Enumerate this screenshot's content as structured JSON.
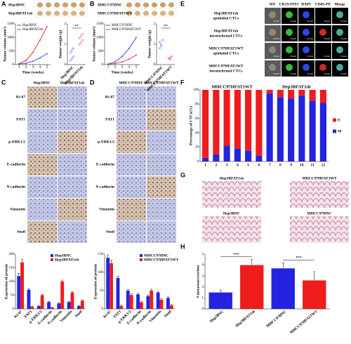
{
  "figure": {
    "panel_labels": [
      "A",
      "B",
      "C",
      "D",
      "E",
      "F",
      "G",
      "H"
    ],
    "a": {
      "photo_labels": [
        "Hep3BNC",
        "Hep3BFAT1sh"
      ]
    },
    "b": {
      "photo_labels": [
        "MHCC97HNC",
        "MHCC97HFAT1WT"
      ]
    },
    "c": {
      "columns": [
        "Hep3BNC",
        "Hep3BFAT1sh"
      ],
      "rows": [
        "Ki-67",
        "FAT1",
        "p-ERK1/2",
        "E-cadherin",
        "N-cadherin",
        "Vimentin",
        "Snail"
      ]
    },
    "d": {
      "columns": [
        "MHCC97HNC",
        "MHCC97HFAT1WT"
      ],
      "rows": [
        "Ki-67",
        "FAT1",
        "p-ERK1/2",
        "E-cadherin",
        "N-cadherin",
        "Vimentin",
        "Snail"
      ]
    },
    "e": {
      "columns": [
        "WF",
        "CK19-FITC",
        "DAPI",
        "CD45-PE",
        "Merge"
      ],
      "rows": [
        [
          "Hep3BFAT1sh",
          "epithelial CTCs"
        ],
        [
          "Hep3BFAT1sh",
          "mesenchymal CTCs"
        ],
        [
          "MHCC97HFAT1WT",
          "epithelial CTCs"
        ],
        [
          "MHCC97HFAT1WT",
          "mesenchymal CTCs"
        ]
      ],
      "scale": "10 μm"
    },
    "g": {
      "labels": [
        "Hep3BFAT1sh",
        "MHCC97HFAT1WT",
        "Hep3BNC",
        "MHCC97HNC"
      ]
    }
  },
  "chart_data": [
    {
      "type": "line",
      "xlabel": "Time (weeks)",
      "ylabel": "Tumor volume (mm³)",
      "x": [
        1,
        2,
        3,
        4,
        5
      ],
      "xlim": [
        0.5,
        5.5
      ],
      "xticks": [
        1,
        2,
        3,
        4,
        5
      ],
      "ylim": [
        0,
        1500
      ],
      "yticks": [
        0,
        500,
        1000,
        1500
      ],
      "legend": "upper-left",
      "series": [
        {
          "name": "Hep3BNC",
          "color": "#2f3fd8",
          "values": [
            20,
            50,
            120,
            250,
            400
          ]
        },
        {
          "name": "Hep3BFAT1sh",
          "color": "#e8231f",
          "values": [
            30,
            150,
            450,
            900,
            1400
          ]
        }
      ]
    },
    {
      "type": "strip",
      "ylabel": "Tumor weight (g)",
      "categories": [
        "Hep3BNC",
        "Hep3BFAT1sh"
      ],
      "colors": [
        "#2f3fd8",
        "#e8231f"
      ],
      "values": [
        [
          0.2,
          0.3,
          0.4,
          0.6,
          0.7,
          0.8
        ],
        [
          1.0,
          1.1,
          1.2,
          1.3,
          1.4,
          1.5
        ]
      ],
      "ylim": [
        0,
        2
      ],
      "yticks": [
        0,
        1,
        2
      ],
      "annotation": "**"
    },
    {
      "type": "line",
      "xlabel": "Time (weeks)",
      "ylabel": "Tumor volume (mm³)",
      "x": [
        1,
        2,
        3,
        4,
        5
      ],
      "xlim": [
        0.5,
        5.5
      ],
      "xticks": [
        1,
        2,
        3,
        4,
        5
      ],
      "ylim": [
        0,
        1500
      ],
      "yticks": [
        0,
        500,
        1000,
        1500
      ],
      "legend": "upper-left",
      "series": [
        {
          "name": "MHCC97HNC",
          "color": "#2f3fd8",
          "values": [
            20,
            100,
            300,
            600,
            1000
          ]
        },
        {
          "name": "MHCC97HFAT1WT",
          "color": "#e8231f",
          "values": [
            10,
            40,
            100,
            200,
            350
          ]
        }
      ]
    },
    {
      "type": "strip",
      "ylabel": "Tumor weight (g)",
      "categories": [
        "MHCC97HNC",
        "MHCC97HFAT1WT"
      ],
      "colors": [
        "#2f3fd8",
        "#e8231f"
      ],
      "values": [
        [
          0.8,
          1.0,
          1.2,
          1.1,
          0.9
        ],
        [
          0.3,
          0.35,
          0.4,
          0.3,
          0.25
        ]
      ],
      "ylim": [
        0,
        2
      ],
      "yticks": [
        0,
        1,
        2
      ],
      "annotation": "**"
    },
    {
      "type": "bar",
      "ylabel": "Expression of protein",
      "categories": [
        "Ki-67",
        "FAT1",
        "p-ERK1/2",
        "E-cadherin",
        "N-cadherin",
        "Vimentin",
        "Snail"
      ],
      "ylim": [
        0,
        200
      ],
      "yticks": [
        0,
        50,
        100,
        150,
        200
      ],
      "legend": "upper-right",
      "series": [
        {
          "name": "Hep3BNC",
          "color": "#2424e0",
          "values": [
            120,
            70,
            10,
            25,
            20,
            25,
            10
          ],
          "errors": [
            10,
            4,
            2,
            3,
            2,
            3,
            2
          ]
        },
        {
          "name": "Hep3BFAT1sh",
          "color": "#ee1c1c",
          "values": [
            170,
            8,
            50,
            5,
            100,
            60,
            30
          ],
          "errors": [
            10,
            2,
            3,
            1,
            5,
            4,
            3
          ]
        }
      ]
    },
    {
      "type": "bar",
      "ylabel": "Expression of protein",
      "categories": [
        "Ki-67",
        "FAT1",
        "p-ERK1/2",
        "E-cadherin",
        "N-cadherin",
        "Vimentin",
        "Snail"
      ],
      "ylim": [
        0,
        150
      ],
      "yticks": [
        0,
        50,
        100,
        150
      ],
      "legend": "upper-right",
      "series": [
        {
          "name": "MHCC97HNC",
          "color": "#2424e0",
          "values": [
            140,
            85,
            50,
            40,
            35,
            45,
            30
          ],
          "errors": [
            8,
            5,
            3,
            3,
            3,
            3,
            3
          ]
        },
        {
          "name": "MHCC97HFAT1WT",
          "color": "#ee1c1c",
          "values": [
            125,
            8,
            38,
            18,
            50,
            25,
            10
          ],
          "errors": [
            8,
            2,
            3,
            2,
            4,
            3,
            2
          ]
        }
      ]
    },
    {
      "type": "stacked_bar",
      "ylabel": "Percentage of CTCs(%)",
      "categories": [
        "1",
        "2",
        "3",
        "4",
        "5",
        "6",
        "7",
        "8",
        "9",
        "10",
        "11",
        "12"
      ],
      "group_labels": [
        "MHCC97HFAT1WT",
        "Hep3BFAT1sh"
      ],
      "ylim": [
        0,
        100
      ],
      "yticks": [
        0,
        20,
        40,
        60,
        80,
        100
      ],
      "legend": "right",
      "series": [
        {
          "name": "M",
          "color": "#2424e0",
          "values": [
            5,
            10,
            22,
            18,
            15,
            8,
            95,
            90,
            88,
            92,
            85,
            82
          ]
        },
        {
          "name": "E",
          "color": "#ee1c1c",
          "values": [
            95,
            90,
            78,
            82,
            85,
            92,
            5,
            10,
            12,
            8,
            15,
            18
          ]
        }
      ]
    },
    {
      "type": "bar_colored",
      "ylabel": "# metastases/section",
      "categories": [
        "Hep3BNC",
        "Hep3BFAT1sh",
        "MHCC97HNC",
        "MHCC97HFAT1WT"
      ],
      "values": [
        1.5,
        4.0,
        3.7,
        2.6
      ],
      "errors": [
        0.2,
        0.5,
        0.5,
        0.8
      ],
      "colors": [
        "#2424e0",
        "#ee1c1c",
        "#2424e0",
        "#ee1c1c"
      ],
      "ylim": [
        0,
        5
      ],
      "yticks": [
        0,
        1,
        2,
        3,
        4,
        5
      ],
      "annotations": [
        "***",
        "***"
      ]
    }
  ]
}
